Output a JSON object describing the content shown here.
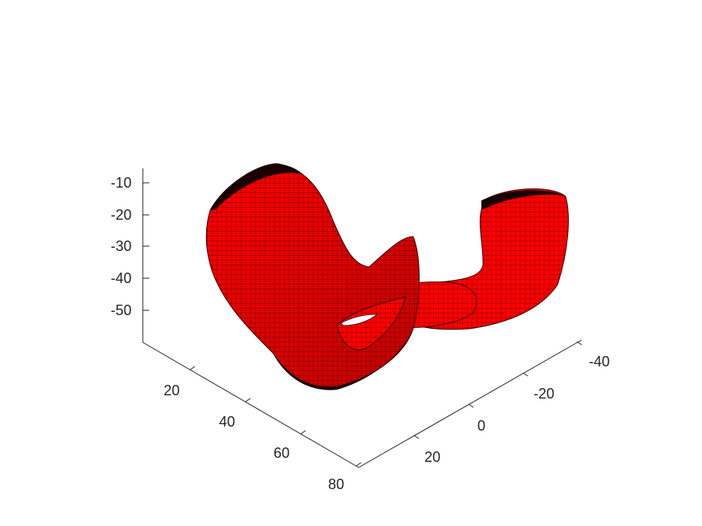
{
  "chart_data": {
    "type": "surface3d",
    "title": "",
    "xlabel": "",
    "ylabel": "",
    "zlabel": "",
    "grid": false,
    "view": "3d",
    "axes": {
      "x": {
        "ticks": [
          20,
          40,
          60,
          80
        ],
        "tick_labels": [
          "20",
          "40",
          "60",
          "80"
        ]
      },
      "y": {
        "ticks": [
          20,
          0,
          -20,
          -40
        ],
        "tick_labels": [
          "20",
          "0",
          "-20",
          "-40"
        ]
      },
      "z": {
        "ticks": [
          -10,
          -20,
          -30,
          -40,
          -50
        ],
        "tick_labels": [
          "-10",
          "-20",
          "-30",
          "-40",
          "-50"
        ]
      }
    },
    "surface": {
      "color": "#ff0000",
      "edge_color": "#000000",
      "description": "saddle-shaped red meshed surface"
    }
  }
}
